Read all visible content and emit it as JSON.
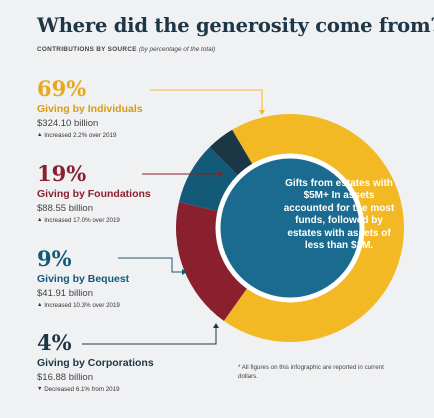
{
  "title": "Where did the generosity come from?",
  "title_mark": "*",
  "subtitle": "CONTRIBUTIONS BY SOURCE",
  "subtitle_note": "(by percentage of the total)",
  "callout": "Gifts from estates with $5M+ In assets accounted for the most funds, followed by estates with assets of less than $1M.",
  "footnote": "* All figures on this infographic are reported in current dollars.",
  "colors": {
    "individuals": "#f2b924",
    "foundations": "#8a1f2d",
    "bequest": "#135a78",
    "corporations": "#1b3645",
    "center": "#1a6b8f"
  },
  "chart_data": {
    "type": "pie",
    "title": "Where did the generosity come from?",
    "slices": [
      {
        "label": "Giving by Individuals",
        "pct_label": "69%",
        "value": 69,
        "amount": "$324.10 billion",
        "change_arrow": "▲",
        "change": "Increased 2.2% over 2019",
        "color": "#f2b924"
      },
      {
        "label": "Giving by Foundations",
        "pct_label": "19%",
        "value": 19,
        "amount": "$88.55 billion",
        "change_arrow": "▲",
        "change": "Increased 17.0% over 2019",
        "color": "#8a1f2d"
      },
      {
        "label": "Giving by Bequest",
        "pct_label": "9%",
        "value": 9,
        "amount": "$41.91 billion",
        "change_arrow": "▲",
        "change": "Increased 10.3% over 2019",
        "color": "#135a78"
      },
      {
        "label": "Giving by Corporations",
        "pct_label": "4%",
        "value": 4,
        "amount": "$16.88 billion",
        "change_arrow": "▼",
        "change": "Decreased 6.1% from 2019",
        "color": "#1b3645"
      }
    ]
  }
}
